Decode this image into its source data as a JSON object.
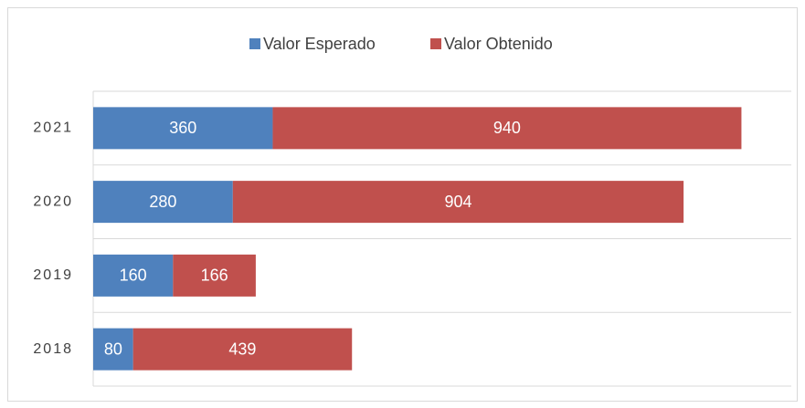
{
  "chart_data": {
    "type": "stacked_barh",
    "categories": [
      "2018",
      "2019",
      "2020",
      "2021"
    ],
    "series": [
      {
        "name": "Valor Esperado",
        "color": "#4f81bd",
        "values": [
          80,
          160,
          280,
          360
        ]
      },
      {
        "name": "Valor Obtenido",
        "color": "#c0504d",
        "values": [
          439,
          166,
          904,
          940
        ]
      }
    ],
    "xlim": [
      0,
      1400
    ],
    "legend": "top"
  }
}
